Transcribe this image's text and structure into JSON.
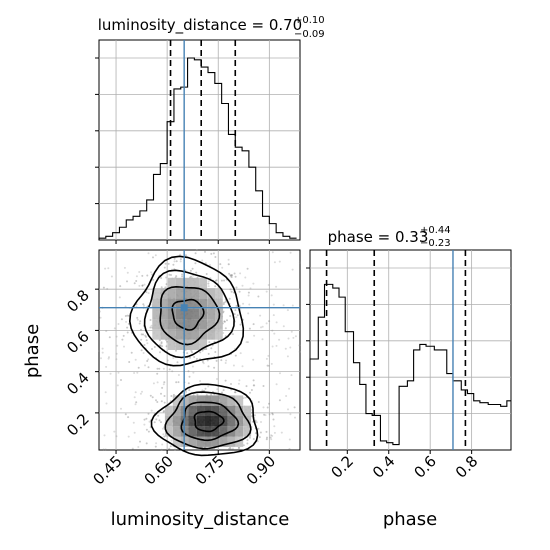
{
  "chart_data": [
    {
      "type": "histogram",
      "panel": "luminosity_distance marginal",
      "title": {
        "param": "luminosity_distance",
        "value": "0.70",
        "plus": "+0.10",
        "minus": "−0.09"
      },
      "xlim": [
        0.4,
        0.99
      ],
      "ylim": [
        0,
        1
      ],
      "bin_edges": [
        0.4,
        0.42,
        0.44,
        0.46,
        0.48,
        0.5,
        0.52,
        0.54,
        0.56,
        0.58,
        0.6,
        0.62,
        0.64,
        0.66,
        0.68,
        0.7,
        0.72,
        0.74,
        0.76,
        0.78,
        0.8,
        0.82,
        0.84,
        0.86,
        0.88,
        0.9,
        0.92,
        0.94,
        0.96,
        0.98
      ],
      "counts": [
        0.01,
        0.02,
        0.04,
        0.07,
        0.11,
        0.13,
        0.16,
        0.22,
        0.36,
        0.42,
        0.65,
        0.83,
        0.84,
        1.0,
        0.99,
        0.95,
        0.92,
        0.86,
        0.75,
        0.58,
        0.51,
        0.49,
        0.4,
        0.27,
        0.13,
        0.09,
        0.04,
        0.02,
        0.01
      ],
      "quantiles": [
        0.61,
        0.7,
        0.8
      ],
      "truth": 0.65,
      "grid": true
    },
    {
      "type": "histogram",
      "panel": "phase marginal",
      "title": {
        "param": "phase",
        "value": "0.33",
        "plus": "+0.44",
        "minus": "−0.23"
      },
      "xlabel": "phase",
      "xticks": [
        "0.2",
        "0.4",
        "0.6",
        "0.8"
      ],
      "xlim": [
        0.02,
        0.99
      ],
      "ylim": [
        0,
        1
      ],
      "bin_edges": [
        0.02,
        0.06,
        0.09,
        0.13,
        0.16,
        0.19,
        0.23,
        0.26,
        0.29,
        0.32,
        0.36,
        0.39,
        0.42,
        0.45,
        0.49,
        0.52,
        0.55,
        0.58,
        0.62,
        0.65,
        0.68,
        0.71,
        0.75,
        0.78,
        0.81,
        0.84,
        0.88,
        0.91,
        0.94,
        0.97,
        0.99
      ],
      "counts": [
        0.5,
        0.73,
        0.91,
        0.89,
        0.84,
        0.65,
        0.48,
        0.36,
        0.2,
        0.19,
        0.05,
        0.04,
        0.03,
        0.35,
        0.38,
        0.55,
        0.58,
        0.57,
        0.55,
        0.55,
        0.42,
        0.38,
        0.33,
        0.31,
        0.27,
        0.26,
        0.25,
        0.25,
        0.24,
        0.27
      ],
      "quantiles": [
        0.1,
        0.33,
        0.77
      ],
      "truth": 0.71,
      "grid": true
    },
    {
      "type": "scatter_contour",
      "panel": "phase vs luminosity_distance",
      "xlabel": "luminosity_distance",
      "ylabel": "phase",
      "xticks": [
        "0.45",
        "0.60",
        "0.75",
        "0.90"
      ],
      "yticks": [
        "0.2",
        "0.4",
        "0.6",
        "0.8"
      ],
      "xlim": [
        0.4,
        0.99
      ],
      "ylim": [
        0.02,
        0.99
      ],
      "truth": {
        "x": 0.65,
        "y": 0.71
      },
      "modes": [
        {
          "x": 0.66,
          "y": 0.68,
          "sx": 0.075,
          "sy": 0.12
        },
        {
          "x": 0.72,
          "y": 0.16,
          "sx": 0.07,
          "sy": 0.08
        }
      ],
      "grid": true
    }
  ],
  "colors": {
    "truth": "#4682b4",
    "quantile": "#000000",
    "grid": "#b0b0b0",
    "points": "#8a8a8a",
    "contour": "#000000"
  }
}
